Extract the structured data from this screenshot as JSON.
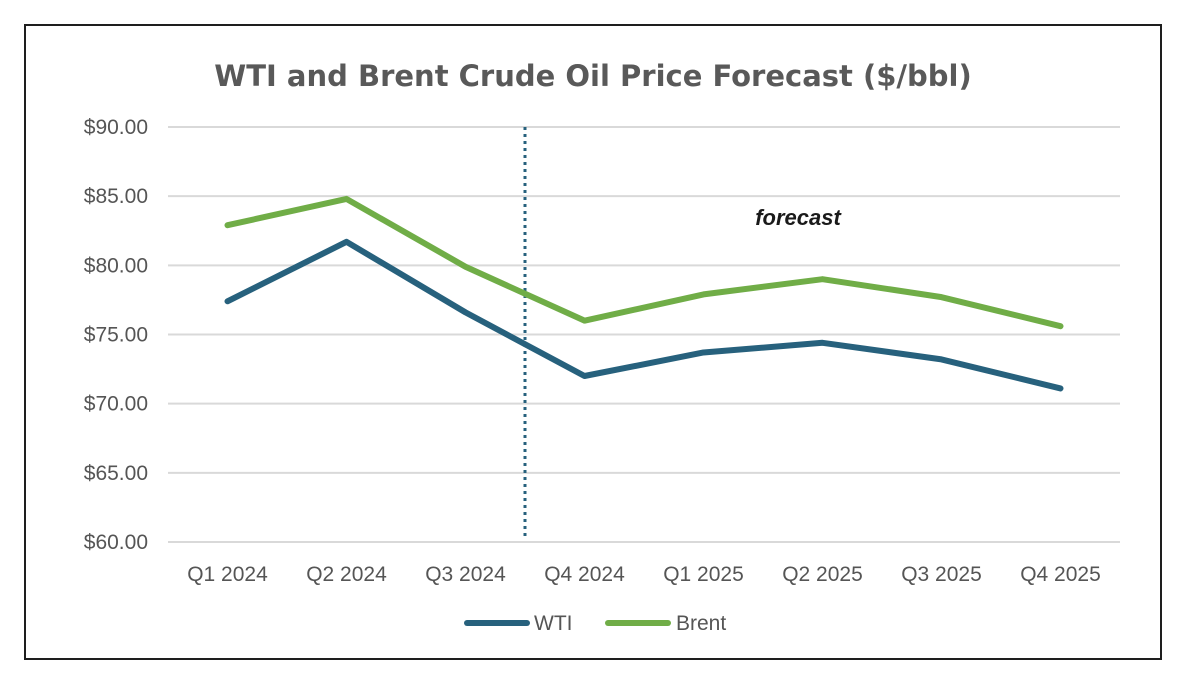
{
  "chart_data": {
    "type": "line",
    "title": "WTI and Brent Crude Oil Price Forecast ($/bbl)",
    "xlabel": "",
    "ylabel": "",
    "categories": [
      "Q1 2024",
      "Q2 2024",
      "Q3 2024",
      "Q4 2024",
      "Q1 2025",
      "Q2 2025",
      "Q3 2025",
      "Q4 2025"
    ],
    "series": [
      {
        "name": "WTI",
        "color": "#27617d",
        "values": [
          77.4,
          81.7,
          76.6,
          72.0,
          73.7,
          74.4,
          73.2,
          71.1
        ]
      },
      {
        "name": "Brent",
        "color": "#70ad47",
        "values": [
          82.9,
          84.8,
          79.9,
          76.0,
          77.9,
          79.0,
          77.7,
          75.6
        ]
      }
    ],
    "ylim": [
      60,
      90
    ],
    "yticks": [
      60,
      65,
      70,
      75,
      80,
      85,
      90
    ],
    "ytick_labels": [
      "$60.00",
      "$65.00",
      "$70.00",
      "$75.00",
      "$80.00",
      "$85.00",
      "$90.00"
    ],
    "grid": true,
    "legend_position": "bottom",
    "forecast_divider_after": "Q3 2024",
    "divider_color": "#27617d",
    "annotation": "forecast",
    "gridline_color": "#d9d9d9"
  }
}
